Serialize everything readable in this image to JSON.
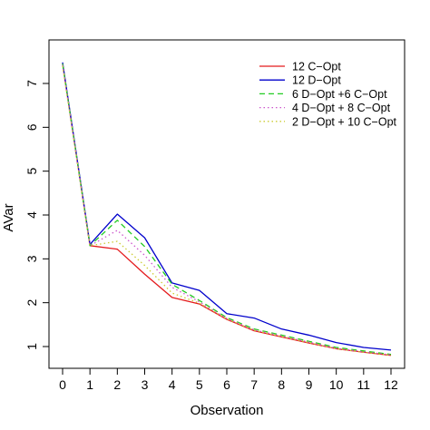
{
  "chart_data": {
    "type": "line",
    "xlabel": "Observation",
    "ylabel": "AVar",
    "xlim": [
      0,
      12
    ],
    "ylim": [
      1,
      7
    ],
    "x": [
      0,
      1,
      2,
      3,
      4,
      5,
      6,
      7,
      8,
      9,
      10,
      11,
      12
    ],
    "xticks": [
      "0",
      "1",
      "2",
      "3",
      "4",
      "5",
      "6",
      "7",
      "8",
      "9",
      "10",
      "11",
      "12"
    ],
    "yticks": [
      "1",
      "2",
      "3",
      "4",
      "5",
      "6",
      "7"
    ],
    "legend_position": "top-right",
    "grid": false,
    "series": [
      {
        "name": "12 C−Opt",
        "color": "#e41a1c",
        "dash": "solid",
        "values": [
          7.45,
          3.3,
          3.22,
          2.65,
          2.12,
          1.97,
          1.62,
          1.36,
          1.22,
          1.08,
          0.95,
          0.87,
          0.8
        ]
      },
      {
        "name": "12 D−Opt",
        "color": "#0000cc",
        "dash": "solid",
        "values": [
          7.48,
          3.33,
          4.02,
          3.48,
          2.45,
          2.28,
          1.75,
          1.65,
          1.4,
          1.26,
          1.09,
          0.98,
          0.92
        ]
      },
      {
        "name": "6 D−Opt +6 C−Opt",
        "color": "#22cc22",
        "dash": "dashed",
        "values": [
          7.45,
          3.3,
          3.88,
          3.28,
          2.42,
          2.05,
          1.66,
          1.4,
          1.26,
          1.12,
          0.98,
          0.9,
          0.82
        ]
      },
      {
        "name": "4 D−Opt + 8 C−Opt",
        "color": "#cc55cc",
        "dash": "dotted",
        "values": [
          7.42,
          3.3,
          3.65,
          3.08,
          2.35,
          2.02,
          1.64,
          1.38,
          1.24,
          1.1,
          0.96,
          0.88,
          0.81
        ]
      },
      {
        "name": "2 D−Opt + 10 C−Opt",
        "color": "#cccc33",
        "dash": "dotted",
        "values": [
          7.4,
          3.3,
          3.4,
          2.85,
          2.22,
          1.99,
          1.63,
          1.37,
          1.23,
          1.09,
          0.95,
          0.87,
          0.8
        ]
      }
    ]
  }
}
